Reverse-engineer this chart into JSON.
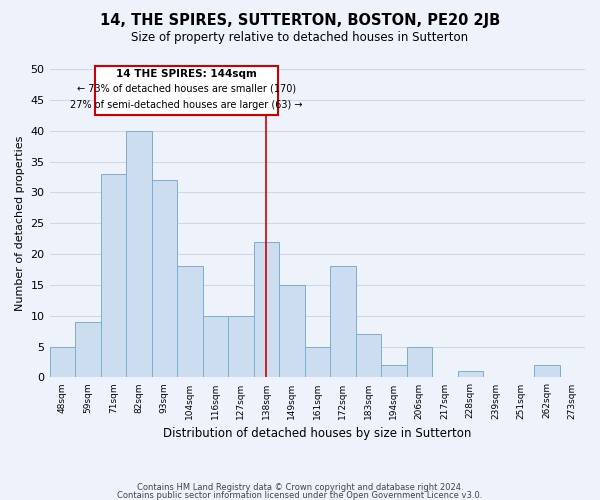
{
  "title": "14, THE SPIRES, SUTTERTON, BOSTON, PE20 2JB",
  "subtitle": "Size of property relative to detached houses in Sutterton",
  "xlabel": "Distribution of detached houses by size in Sutterton",
  "ylabel": "Number of detached properties",
  "bins": [
    "48sqm",
    "59sqm",
    "71sqm",
    "82sqm",
    "93sqm",
    "104sqm",
    "116sqm",
    "127sqm",
    "138sqm",
    "149sqm",
    "161sqm",
    "172sqm",
    "183sqm",
    "194sqm",
    "206sqm",
    "217sqm",
    "228sqm",
    "239sqm",
    "251sqm",
    "262sqm",
    "273sqm"
  ],
  "values": [
    5,
    9,
    33,
    40,
    32,
    18,
    10,
    10,
    22,
    15,
    5,
    18,
    7,
    2,
    5,
    0,
    1,
    0,
    0,
    2,
    0
  ],
  "bar_color": "#ccddf0",
  "bar_edge_color": "#7aaed4",
  "vline_x_idx": 8,
  "vline_color": "#cc0000",
  "ylim": [
    0,
    50
  ],
  "yticks": [
    0,
    5,
    10,
    15,
    20,
    25,
    30,
    35,
    40,
    45,
    50
  ],
  "annotation_title": "14 THE SPIRES: 144sqm",
  "annotation_line1": "← 73% of detached houses are smaller (170)",
  "annotation_line2": "27% of semi-detached houses are larger (63) →",
  "footnote1": "Contains HM Land Registry data © Crown copyright and database right 2024.",
  "footnote2": "Contains public sector information licensed under the Open Government Licence v3.0.",
  "bg_color": "#eef2fa",
  "grid_color": "#d0d8e8"
}
